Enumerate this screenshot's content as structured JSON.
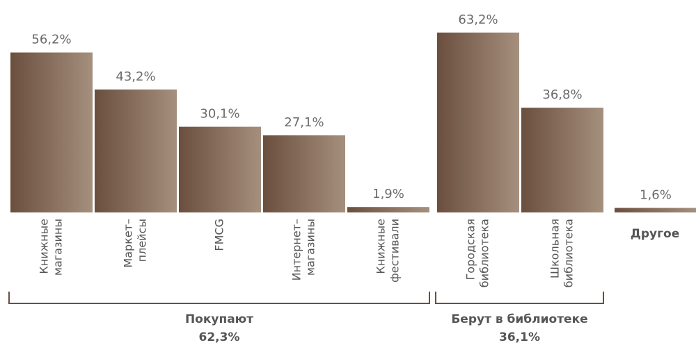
{
  "chart_data": {
    "type": "bar",
    "color": [
      "#6b4f3e",
      "#a58f7d"
    ],
    "groups": [
      {
        "name": "Покупают",
        "total": 62.3,
        "total_label": "62,3%",
        "categories": [
          [
            "Книжные",
            "магазины"
          ],
          [
            "Маркет–",
            "плейсы"
          ],
          [
            "FMCG"
          ],
          [
            "Интернет–",
            "магазины"
          ],
          [
            "Книжные",
            "фестивали"
          ]
        ],
        "values": [
          56.2,
          43.2,
          30.1,
          27.1,
          1.9
        ],
        "value_labels": [
          "56,2%",
          "43,2%",
          "30,1%",
          "27,1%",
          "1,9%"
        ]
      },
      {
        "name": "Берут в библиотеке",
        "total": 36.1,
        "total_label": "36,1%",
        "categories": [
          [
            "Городская",
            "библиотека"
          ],
          [
            "Школьная",
            "библиотека"
          ]
        ],
        "values": [
          63.2,
          36.8
        ],
        "value_labels": [
          "63,2%",
          "36,8%"
        ]
      },
      {
        "name": "Другое",
        "categories": [
          null
        ],
        "values": [
          1.6
        ],
        "value_labels": [
          "1,6%"
        ]
      }
    ]
  }
}
